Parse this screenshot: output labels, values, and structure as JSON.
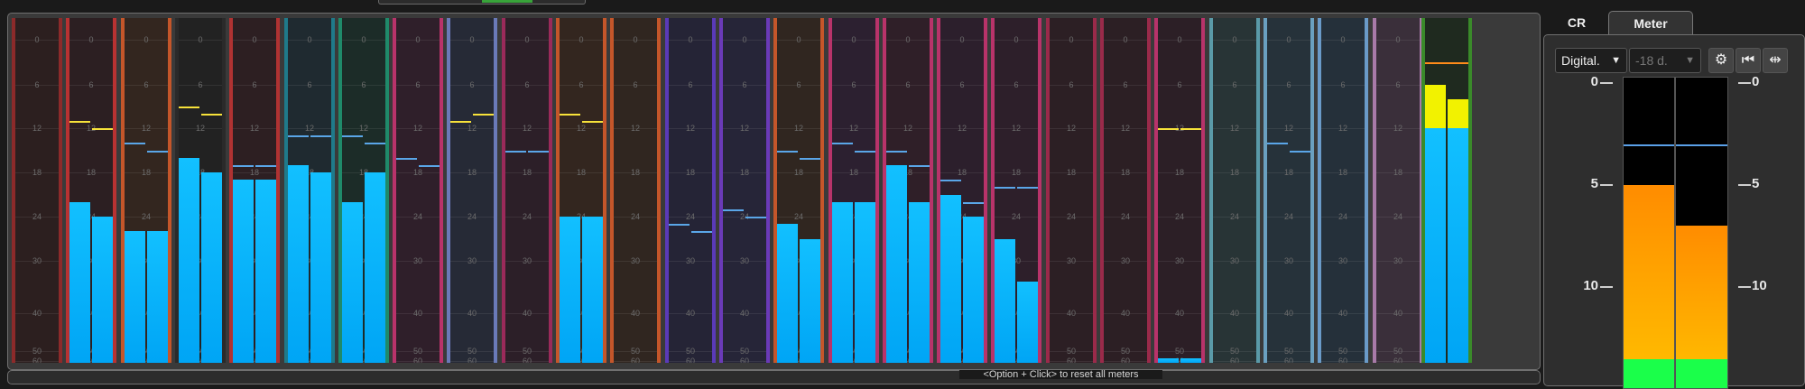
{
  "scale_labels": [
    "0",
    "6",
    "12",
    "18",
    "24",
    "30",
    "40",
    "50",
    "60"
  ],
  "colors": {
    "meter_fill": "#00b0ff",
    "peak_hold_yellow": "#f7e23a",
    "peak_hold_blue": "#5aa6e8",
    "master_yellow": "#f2f200",
    "master_peak": "#ff8c1a"
  },
  "strips": [
    {
      "color": "#8c2a2a",
      "bg": "#2c1f1f",
      "levels": [
        null,
        null
      ],
      "peaks": [
        null,
        null
      ]
    },
    {
      "color": "#b83232",
      "bg": "#2c1f22",
      "levels": [
        -22,
        -24
      ],
      "peaks": [
        -11,
        -12
      ]
    },
    {
      "color": "#c4562a",
      "bg": "#33261f",
      "levels": [
        -26,
        -26
      ],
      "peaks": [
        -14,
        -15
      ]
    },
    {
      "color": "#2a2a2a",
      "bg": "#222222",
      "levels": [
        -16,
        -18
      ],
      "peaks": [
        -9,
        -10
      ]
    },
    {
      "color": "#b03232",
      "bg": "#2d1f22",
      "levels": [
        -19,
        -19
      ],
      "peaks": [
        -17,
        -17
      ]
    },
    {
      "color": "#1f7a8a",
      "bg": "#1f2a30",
      "levels": [
        -17,
        -18
      ],
      "peaks": [
        -13,
        -13
      ]
    },
    {
      "color": "#1f8a6a",
      "bg": "#1c2c28",
      "levels": [
        -22,
        -18
      ],
      "peaks": [
        -13,
        -14
      ]
    },
    {
      "color": "#b8336a",
      "bg": "#2f1f2a",
      "levels": [
        null,
        null
      ],
      "peaks": [
        -16,
        -17
      ]
    },
    {
      "color": "#6a7ab8",
      "bg": "#262a36",
      "levels": [
        null,
        null
      ],
      "peaks": [
        -11,
        -10
      ]
    },
    {
      "color": "#9a2a5a",
      "bg": "#2c1f28",
      "levels": [
        null,
        null
      ],
      "peaks": [
        -15,
        -15
      ]
    },
    {
      "color": "#c4562a",
      "bg": "#33261f",
      "levels": [
        -24,
        -24
      ],
      "peaks": [
        -10,
        -11
      ]
    },
    {
      "color": "#c4562a",
      "bg": "#302620",
      "levels": [
        null,
        null
      ],
      "peaks": [
        null,
        null
      ]
    },
    {
      "color": "#5a3ab8",
      "bg": "#252436",
      "levels": [
        null,
        null
      ],
      "peaks": [
        -25,
        -26
      ]
    },
    {
      "color": "#6a3ab8",
      "bg": "#262538",
      "levels": [
        null,
        null
      ],
      "peaks": [
        -23,
        -24
      ]
    },
    {
      "color": "#c4562a",
      "bg": "#302620",
      "levels": [
        -25,
        -27
      ],
      "peaks": [
        -15,
        -16
      ]
    },
    {
      "color": "#b8336a",
      "bg": "#2c2030",
      "levels": [
        -22,
        -22
      ],
      "peaks": [
        -14,
        -15
      ]
    },
    {
      "color": "#b8336a",
      "bg": "#2f1f28",
      "levels": [
        -17,
        -22
      ],
      "peaks": [
        -15,
        -17
      ]
    },
    {
      "color": "#b8336a",
      "bg": "#2c1f2c",
      "levels": [
        -21,
        -24
      ],
      "peaks": [
        -19,
        -22
      ]
    },
    {
      "color": "#b8336a",
      "bg": "#2d1f2a",
      "levels": [
        -27,
        -34
      ],
      "peaks": [
        -20,
        -20
      ]
    },
    {
      "color": "#9a2a4a",
      "bg": "#2c1f24",
      "levels": [
        null,
        null
      ],
      "peaks": [
        null,
        null
      ]
    },
    {
      "color": "#9a2a4a",
      "bg": "#2c1f24",
      "levels": [
        null,
        null
      ],
      "peaks": [
        null,
        null
      ]
    },
    {
      "color": "#b8336a",
      "bg": "#2c1f26",
      "levels": [
        -57,
        -57
      ],
      "peaks": [
        -12,
        -12
      ]
    },
    {
      "color": "#5a9aa8",
      "bg": "#283436",
      "levels": [
        null,
        null
      ],
      "peaks": [
        null,
        null
      ]
    },
    {
      "color": "#6aa0c0",
      "bg": "#26323a",
      "levels": [
        null,
        null
      ],
      "peaks": [
        -14,
        -15
      ]
    },
    {
      "color": "#6a9ac8",
      "bg": "#25303a",
      "levels": [
        null,
        null
      ],
      "peaks": [
        null,
        null
      ]
    },
    {
      "color": "#a87aa8",
      "bg": "#3a2f3a",
      "levels": [
        null,
        null
      ],
      "peaks": [
        null,
        null
      ]
    }
  ],
  "master": {
    "color": "#3a8a2a",
    "bg": "#1f2a1f",
    "levels": [
      -12,
      -12
    ],
    "yellow_tops": [
      -6,
      -8
    ],
    "peak": -3
  },
  "status": {
    "hint": "<Option + Click> to reset all meters"
  },
  "panel": {
    "tabs": [
      {
        "label": "CR",
        "active": false
      },
      {
        "label": "Meter",
        "active": true
      }
    ],
    "dropdown_type": {
      "value": "Digital."
    },
    "dropdown_ref": {
      "value": "-18 d."
    },
    "scale_ticks": [
      "0",
      "5",
      "10"
    ],
    "meters": [
      {
        "level": -5
      },
      {
        "level": -7
      }
    ],
    "peak_hold": -3
  }
}
